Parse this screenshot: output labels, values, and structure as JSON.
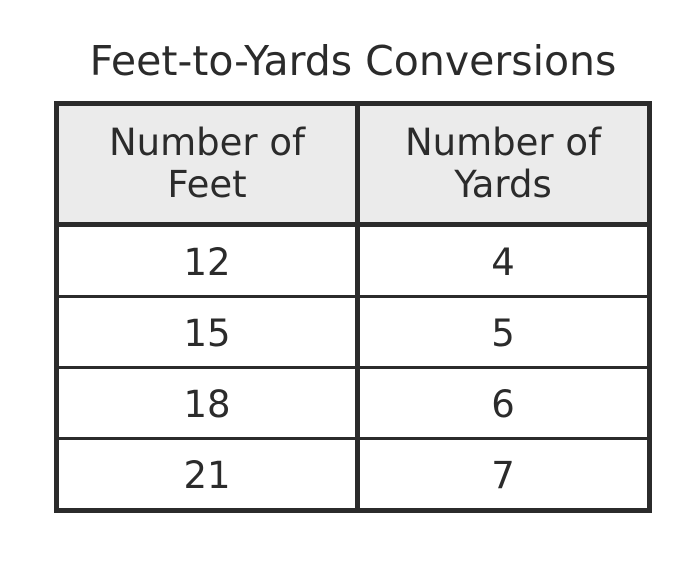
{
  "chart_data": {
    "type": "table",
    "title": "Feet-to-Yards Conversions",
    "columns": [
      [
        "Number of",
        "Feet"
      ],
      [
        "Number of",
        "Yards"
      ]
    ],
    "rows": [
      [
        "12",
        "4"
      ],
      [
        "15",
        "5"
      ],
      [
        "18",
        "6"
      ],
      [
        "21",
        "7"
      ]
    ]
  }
}
